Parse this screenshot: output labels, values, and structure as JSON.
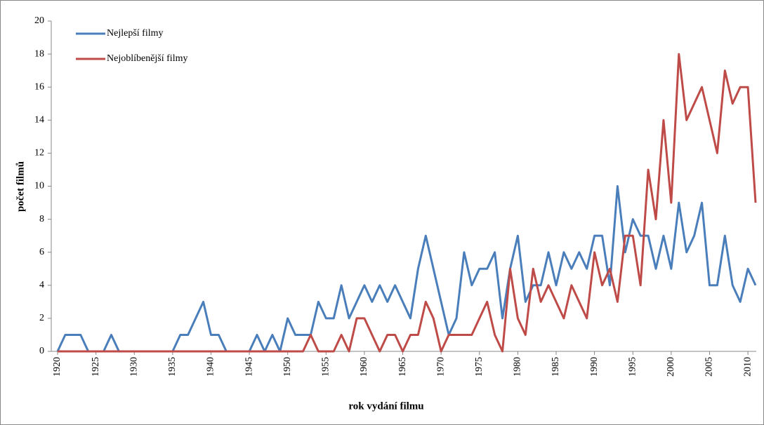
{
  "chart_data": {
    "type": "line",
    "x": [
      1920,
      1921,
      1922,
      1923,
      1924,
      1925,
      1926,
      1927,
      1928,
      1929,
      1930,
      1931,
      1932,
      1933,
      1934,
      1935,
      1936,
      1937,
      1938,
      1939,
      1940,
      1941,
      1942,
      1943,
      1944,
      1945,
      1946,
      1947,
      1948,
      1949,
      1950,
      1951,
      1952,
      1953,
      1954,
      1955,
      1956,
      1957,
      1958,
      1959,
      1960,
      1961,
      1962,
      1963,
      1964,
      1965,
      1966,
      1967,
      1968,
      1969,
      1970,
      1971,
      1972,
      1973,
      1974,
      1975,
      1976,
      1977,
      1978,
      1979,
      1980,
      1981,
      1982,
      1983,
      1984,
      1985,
      1986,
      1987,
      1988,
      1989,
      1990,
      1991,
      1992,
      1993,
      1994,
      1995,
      1996,
      1997,
      1998,
      1999,
      2000,
      2001,
      2002,
      2003,
      2004,
      2005,
      2006,
      2007,
      2008,
      2009,
      2010,
      2011
    ],
    "series": [
      {
        "name": "Nejlepší filmy",
        "color": "#4a7ebb",
        "values": [
          0,
          1,
          1,
          1,
          0,
          0,
          0,
          1,
          0,
          0,
          0,
          0,
          0,
          0,
          0,
          0,
          1,
          1,
          2,
          3,
          1,
          1,
          0,
          0,
          0,
          0,
          1,
          0,
          1,
          0,
          2,
          1,
          1,
          1,
          3,
          2,
          2,
          4,
          2,
          3,
          4,
          3,
          4,
          3,
          4,
          3,
          2,
          5,
          7,
          5,
          3,
          1,
          2,
          6,
          4,
          5,
          5,
          6,
          2,
          5,
          7,
          3,
          4,
          4,
          6,
          4,
          6,
          5,
          6,
          5,
          7,
          7,
          4,
          10,
          6,
          8,
          7,
          7,
          5,
          7,
          5,
          9,
          6,
          7,
          9,
          4,
          4,
          7,
          4,
          3,
          5,
          4
        ]
      },
      {
        "name": "Nejoblíbenější filmy",
        "color": "#be4b48",
        "values": [
          0,
          0,
          0,
          0,
          0,
          0,
          0,
          0,
          0,
          0,
          0,
          0,
          0,
          0,
          0,
          0,
          0,
          0,
          0,
          0,
          0,
          0,
          0,
          0,
          0,
          0,
          0,
          0,
          0,
          0,
          0,
          0,
          0,
          1,
          0,
          0,
          0,
          1,
          0,
          2,
          2,
          1,
          0,
          1,
          1,
          0,
          1,
          1,
          3,
          2,
          0,
          1,
          1,
          1,
          1,
          2,
          3,
          1,
          0,
          5,
          2,
          1,
          5,
          3,
          4,
          3,
          2,
          4,
          3,
          2,
          6,
          4,
          5,
          3,
          7,
          7,
          4,
          11,
          8,
          14,
          9,
          18,
          14,
          15,
          16,
          14,
          12,
          17,
          15,
          16,
          16,
          9
        ]
      }
    ],
    "xlim": [
      1920,
      2011
    ],
    "xticks": [
      1920,
      1925,
      1930,
      1935,
      1940,
      1945,
      1950,
      1955,
      1960,
      1965,
      1970,
      1975,
      1980,
      1985,
      1990,
      1995,
      2000,
      2005,
      2010
    ],
    "ylim": [
      0,
      20
    ],
    "yticks": [
      0,
      2,
      4,
      6,
      8,
      10,
      12,
      14,
      16,
      18,
      20
    ],
    "ylabel": "počet filmů",
    "xlabel": "rok vydání filmu",
    "legend": "upper left"
  }
}
